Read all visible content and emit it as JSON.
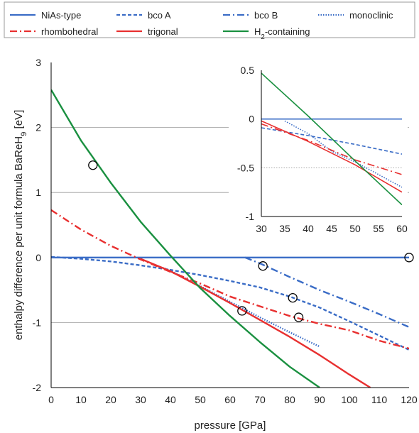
{
  "chart_data": {
    "type": "line",
    "legend": {
      "placement": "top",
      "entries": [
        {
          "name": "NiAs-type",
          "color": "#3a6cc6",
          "dash": "solid"
        },
        {
          "name": "bco A",
          "color": "#3a6cc6",
          "dash": "dashed"
        },
        {
          "name": "bco B",
          "color": "#3a6cc6",
          "dash": "dashdot"
        },
        {
          "name": "monoclinic",
          "color": "#3a6cc6",
          "dash": "dotted"
        },
        {
          "name": "rhombohedral",
          "color": "#e83030",
          "dash": "dashdot"
        },
        {
          "name": "trigonal",
          "color": "#e83030",
          "dash": "solid"
        },
        {
          "name": "H₂-containing",
          "color": "#1a9040",
          "dash": "solid"
        }
      ]
    },
    "main": {
      "xlabel": "pressure [GPa]",
      "ylabel": "enthalpy difference per unit formula BaReH₉ [eV]",
      "xlim": [
        0,
        120
      ],
      "ylim": [
        -2,
        3
      ],
      "xticks": [
        "0",
        "10",
        "20",
        "30",
        "40",
        "50",
        "60",
        "70",
        "80",
        "90",
        "100",
        "110",
        "120"
      ],
      "yticks": [
        "-2",
        "-1",
        "0",
        "1",
        "2",
        "3"
      ],
      "grid": "horizontal",
      "series": [
        {
          "name": "NiAs-type",
          "x": [
            0,
            120
          ],
          "y": [
            0,
            0
          ]
        },
        {
          "name": "bco A",
          "x": [
            0,
            10,
            20,
            30,
            40,
            50,
            60,
            70,
            80,
            90,
            100,
            110,
            120
          ],
          "y": [
            0.01,
            -0.02,
            -0.06,
            -0.12,
            -0.19,
            -0.27,
            -0.36,
            -0.46,
            -0.6,
            -0.77,
            -0.98,
            -1.2,
            -1.42
          ]
        },
        {
          "name": "bco B",
          "x": [
            65,
            70,
            80,
            90,
            100,
            110,
            120
          ],
          "y": [
            0,
            -0.09,
            -0.3,
            -0.5,
            -0.68,
            -0.87,
            -1.07
          ]
        },
        {
          "name": "monoclinic",
          "x": [
            35,
            40,
            50,
            60,
            70,
            80,
            90
          ],
          "y": [
            -0.12,
            -0.2,
            -0.44,
            -0.68,
            -0.92,
            -1.15,
            -1.37
          ]
        },
        {
          "name": "rhombohedral",
          "x": [
            0,
            10,
            20,
            30,
            40,
            50,
            60,
            70,
            80,
            90,
            100,
            110,
            120
          ],
          "y": [
            0.73,
            0.43,
            0.18,
            -0.03,
            -0.22,
            -0.4,
            -0.6,
            -0.75,
            -0.9,
            -1.02,
            -1.12,
            -1.28,
            -1.4
          ]
        },
        {
          "name": "trigonal",
          "x": [
            30,
            40,
            50,
            60,
            70,
            80,
            90,
            100,
            107
          ],
          "y": [
            -0.02,
            -0.21,
            -0.45,
            -0.7,
            -0.96,
            -1.22,
            -1.5,
            -1.8,
            -2.0
          ]
        },
        {
          "name": "H₂-containing",
          "x": [
            0,
            10,
            20,
            30,
            40,
            50,
            60,
            70,
            80,
            90
          ],
          "y": [
            2.58,
            1.8,
            1.15,
            0.55,
            0.03,
            -0.47,
            -0.9,
            -1.3,
            -1.68,
            -2.0
          ]
        }
      ],
      "markers": [
        {
          "x": 14,
          "y": 1.42
        },
        {
          "x": 64,
          "y": -0.82
        },
        {
          "x": 71,
          "y": -0.13
        },
        {
          "x": 81,
          "y": -0.62
        },
        {
          "x": 83,
          "y": -0.92
        },
        {
          "x": 120,
          "y": 0
        }
      ]
    },
    "inset": {
      "xlim": [
        30,
        60
      ],
      "ylim": [
        -1,
        0.5
      ],
      "xticks": [
        "30",
        "35",
        "40",
        "45",
        "50",
        "55",
        "60"
      ],
      "yticks": [
        "0.5",
        "0",
        "-0.5",
        "-1"
      ],
      "series": [
        {
          "name": "NiAs-type",
          "x": [
            30,
            60
          ],
          "y": [
            0,
            0
          ]
        },
        {
          "name": "bco A",
          "x": [
            30,
            40,
            50,
            60
          ],
          "y": [
            -0.09,
            -0.17,
            -0.26,
            -0.36
          ]
        },
        {
          "name": "monoclinic",
          "x": [
            35,
            40,
            45,
            50,
            55,
            60
          ],
          "y": [
            -0.02,
            -0.15,
            -0.33,
            -0.44,
            -0.57,
            -0.7
          ]
        },
        {
          "name": "rhombohedral",
          "x": [
            30,
            40,
            50,
            60
          ],
          "y": [
            -0.05,
            -0.22,
            -0.42,
            -0.57
          ]
        },
        {
          "name": "trigonal",
          "x": [
            30,
            40,
            50,
            60
          ],
          "y": [
            -0.02,
            -0.23,
            -0.47,
            -0.75
          ]
        },
        {
          "name": "H₂-containing",
          "x": [
            30,
            40,
            50,
            60
          ],
          "y": [
            0.47,
            0.03,
            -0.43,
            -0.88
          ]
        }
      ]
    }
  }
}
